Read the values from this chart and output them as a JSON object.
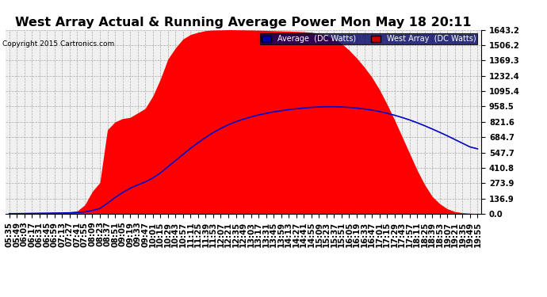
{
  "title": "West Array Actual & Running Average Power Mon May 18 20:11",
  "copyright": "Copyright 2015 Cartronics.com",
  "legend_avg": "Average  (DC Watts)",
  "legend_west": "West Array  (DC Watts)",
  "ymax": 1643.2,
  "ymin": 0.0,
  "yticks": [
    0.0,
    136.9,
    273.9,
    410.8,
    547.7,
    684.7,
    821.6,
    958.5,
    1095.4,
    1232.4,
    1369.3,
    1506.2,
    1643.2
  ],
  "background_color": "#ffffff",
  "plot_bg_color": "#f0f0f0",
  "grid_color": "#aaaaaa",
  "fill_color": "#ff0000",
  "line_color": "#0000cc",
  "x_times": [
    "05:35",
    "05:49",
    "06:03",
    "06:17",
    "06:31",
    "06:45",
    "06:59",
    "07:13",
    "07:27",
    "07:41",
    "07:55",
    "08:09",
    "08:23",
    "08:37",
    "08:51",
    "09:05",
    "09:19",
    "09:33",
    "09:47",
    "10:01",
    "10:15",
    "10:29",
    "10:43",
    "10:57",
    "11:11",
    "11:25",
    "11:39",
    "11:53",
    "12:07",
    "12:21",
    "12:35",
    "12:49",
    "13:03",
    "13:17",
    "13:31",
    "13:45",
    "13:59",
    "14:13",
    "14:27",
    "14:41",
    "14:55",
    "15:09",
    "15:23",
    "15:37",
    "15:51",
    "16:05",
    "16:19",
    "16:33",
    "16:47",
    "17:01",
    "17:15",
    "17:29",
    "17:43",
    "17:57",
    "18:11",
    "18:25",
    "18:39",
    "18:53",
    "19:07",
    "19:21",
    "19:35",
    "19:49",
    "19:55"
  ],
  "west_array": [
    2,
    3,
    5,
    6,
    8,
    10,
    12,
    15,
    18,
    25,
    80,
    200,
    280,
    750,
    820,
    850,
    860,
    900,
    940,
    1050,
    1200,
    1380,
    1480,
    1560,
    1600,
    1620,
    1635,
    1640,
    1641,
    1643,
    1642,
    1641,
    1640,
    1638,
    1636,
    1634,
    1632,
    1630,
    1628,
    1625,
    1620,
    1610,
    1590,
    1560,
    1520,
    1460,
    1390,
    1310,
    1220,
    1110,
    980,
    840,
    690,
    540,
    390,
    260,
    155,
    90,
    45,
    20,
    10,
    5,
    2
  ],
  "running_avg": [
    2,
    2,
    3,
    4,
    5,
    6,
    7,
    8,
    9,
    11,
    17,
    30,
    48,
    95,
    145,
    190,
    228,
    258,
    285,
    320,
    365,
    420,
    475,
    530,
    585,
    635,
    682,
    725,
    762,
    795,
    822,
    845,
    865,
    882,
    897,
    910,
    920,
    930,
    938,
    944,
    950,
    954,
    956,
    956,
    954,
    950,
    944,
    936,
    926,
    913,
    898,
    880,
    860,
    838,
    813,
    786,
    757,
    727,
    696,
    663,
    630,
    597,
    580
  ],
  "tick_label_fontsize": 7.2,
  "title_fontsize": 11.5,
  "legend_avg_bg": "#0000aa",
  "legend_west_bg": "#cc0000"
}
